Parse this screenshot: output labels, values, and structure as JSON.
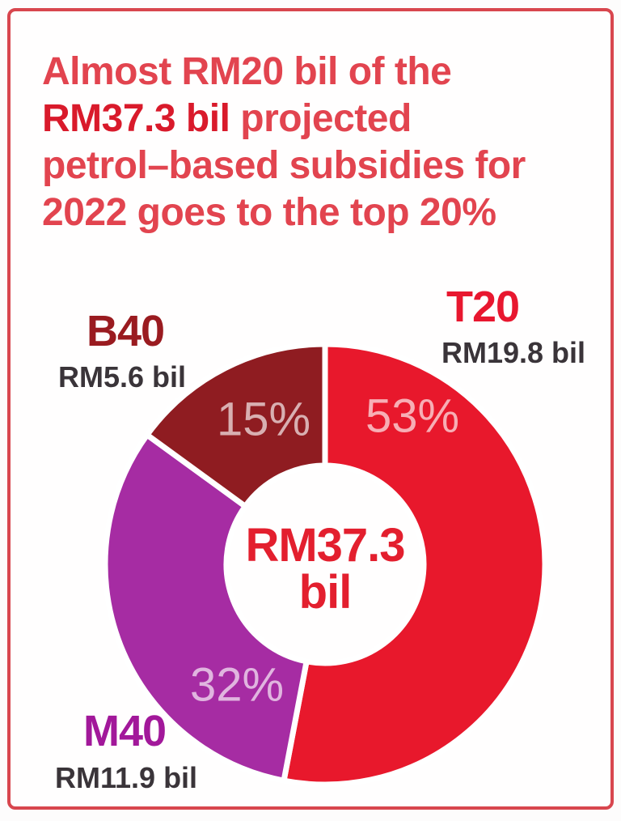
{
  "headline": {
    "line1": "Almost RM20 bil of the",
    "line2_bold": "RM37.3 bil",
    "line2_rest": " projected",
    "line3": "petrol–based subsidies for",
    "line4": "2022 goes to the top 20%"
  },
  "chart_data": {
    "type": "pie",
    "subtype": "donut",
    "title": "Almost RM20 bil of the RM37.3 bil projected petrol–based subsidies for 2022 goes to the top 20%",
    "total_value_bil": 37.3,
    "center_line1": "RM37.3",
    "center_line2": "bil",
    "start_angle_deg": 0,
    "direction": "clockwise",
    "inner_radius_ratio": 0.45,
    "legend_position": "callouts-outside",
    "segments": [
      {
        "name": "T20",
        "amount": "RM19.8 bil",
        "value_bil": 19.8,
        "percent": 53,
        "pct_label": "53%",
        "color": "#e8182c",
        "name_color": "#e8172f"
      },
      {
        "name": "M40",
        "amount": "RM11.9 bil",
        "value_bil": 11.9,
        "percent": 32,
        "pct_label": "32%",
        "color": "#a62ca3",
        "name_color": "#a2189a"
      },
      {
        "name": "B40",
        "amount": "RM5.6 bil",
        "value_bil": 5.6,
        "percent": 15,
        "pct_label": "15%",
        "color": "#8f1c21",
        "name_color": "#9a1b20"
      }
    ]
  },
  "colors": {
    "frame_border": "#d8464e",
    "headline_regular": "#e2444f",
    "headline_bold": "#d91a2b",
    "center_text": "#e31f2e",
    "amount_text": "#3a3439",
    "slice_pct_text": "rgba(255,255,255,0.65)",
    "background": "#fffefe"
  }
}
